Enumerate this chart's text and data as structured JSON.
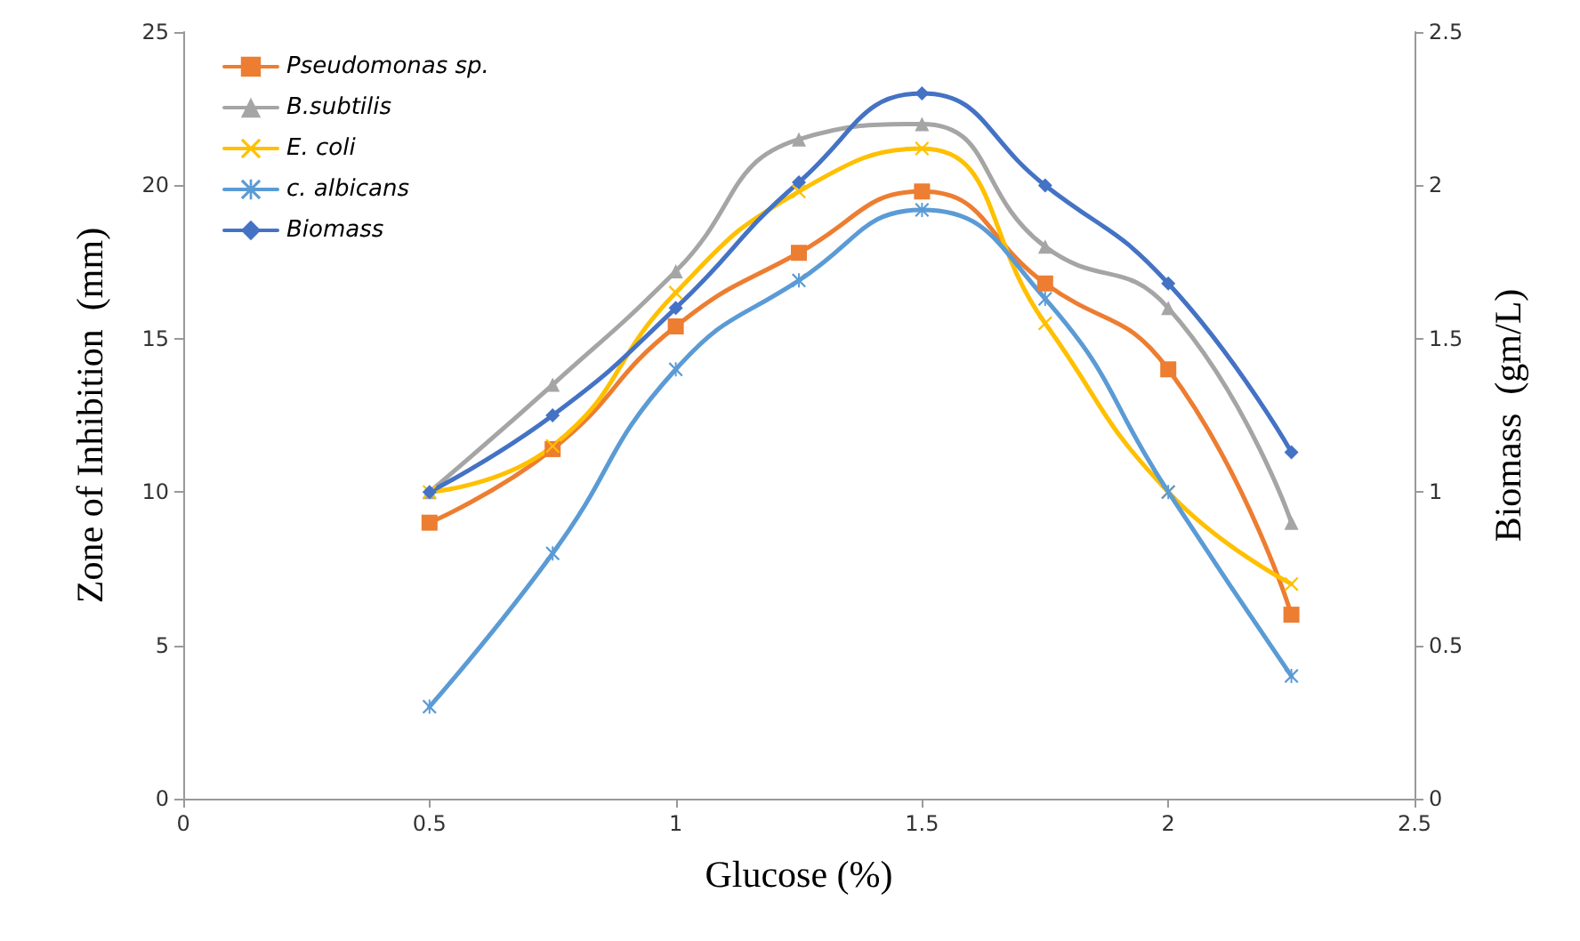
{
  "chart_data": {
    "type": "line",
    "xlabel": "Glucose (%)",
    "ylabel": "Zone of Inhibition  (mm)",
    "y2label": "Biomass  (gm/L)",
    "x": [
      0.5,
      0.75,
      1,
      1.25,
      1.5,
      1.75,
      2,
      2.25
    ],
    "series": [
      {
        "name": "Pseudomonas sp.",
        "color": "#ed7d31",
        "marker": "square",
        "values": [
          9,
          11.4,
          15.4,
          17.8,
          19.8,
          16.8,
          14,
          6
        ]
      },
      {
        "name": "B.subtilis",
        "color": "#a5a5a5",
        "marker": "triangle",
        "values": [
          10,
          13.5,
          17.2,
          21.5,
          22,
          18,
          16,
          9
        ]
      },
      {
        "name": "E. coli",
        "color": "#ffc000",
        "marker": "cross",
        "values": [
          10,
          11.5,
          16.5,
          19.8,
          21.2,
          15.5,
          10,
          7
        ]
      },
      {
        "name": "c. albicans",
        "color": "#5b9bd5",
        "marker": "star",
        "values": [
          3,
          8,
          14,
          16.9,
          19.2,
          16.3,
          10,
          4
        ]
      },
      {
        "name": "Biomass",
        "color": "#4472c4",
        "marker": "diamond",
        "axis": "y2",
        "values": [
          1,
          1.25,
          1.6,
          2.01,
          2.3,
          2,
          1.68,
          1.13
        ]
      }
    ],
    "xlim": [
      0,
      2.5
    ],
    "xticks": [
      0,
      0.5,
      1,
      1.5,
      2,
      2.5
    ],
    "ylim": [
      0,
      25
    ],
    "yticks": [
      0,
      5,
      10,
      15,
      20,
      25
    ],
    "y2lim": [
      0,
      2.5
    ],
    "y2ticks": [
      0,
      0.5,
      1,
      1.5,
      2,
      2.5
    ],
    "grid": false,
    "legend": "top left",
    "line_style": "solid"
  }
}
